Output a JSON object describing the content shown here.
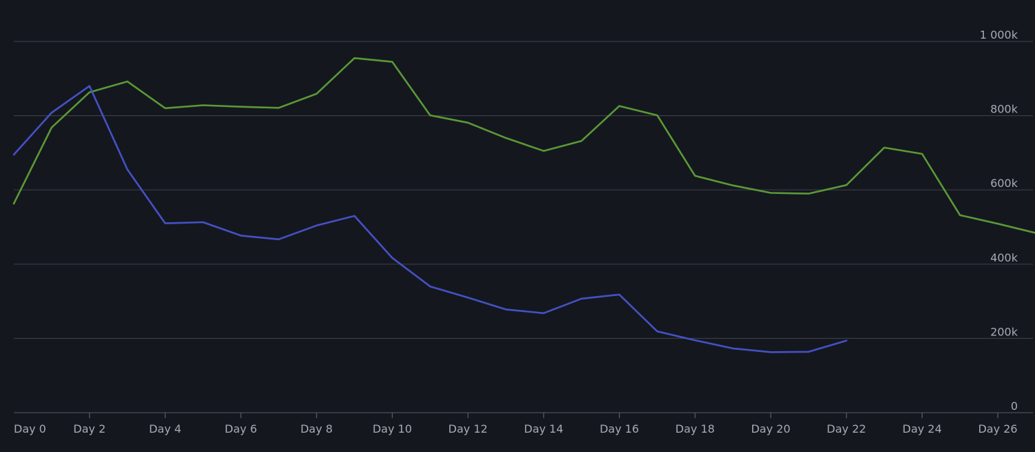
{
  "chart_data": {
    "type": "line",
    "title": "",
    "xlabel": "",
    "ylabel": "",
    "x": [
      0,
      1,
      2,
      3,
      4,
      5,
      6,
      7,
      8,
      9,
      10,
      11,
      12,
      13,
      14,
      15,
      16,
      17,
      18,
      19,
      20,
      21,
      22,
      23,
      24,
      25,
      26,
      27
    ],
    "xlim": [
      0,
      27
    ],
    "ylim": [
      0,
      1000000
    ],
    "y_ticks": [
      {
        "value": 0,
        "label": "0"
      },
      {
        "value": 200000,
        "label": "200k"
      },
      {
        "value": 400000,
        "label": "400k"
      },
      {
        "value": 600000,
        "label": "600k"
      },
      {
        "value": 800000,
        "label": "800k"
      },
      {
        "value": 1000000,
        "label": "1 000k"
      }
    ],
    "x_ticks": [
      {
        "value": 0,
        "label": "Day 0"
      },
      {
        "value": 2,
        "label": "Day 2"
      },
      {
        "value": 4,
        "label": "Day 4"
      },
      {
        "value": 6,
        "label": "Day 6"
      },
      {
        "value": 8,
        "label": "Day 8"
      },
      {
        "value": 10,
        "label": "Day 10"
      },
      {
        "value": 12,
        "label": "Day 12"
      },
      {
        "value": 14,
        "label": "Day 14"
      },
      {
        "value": 16,
        "label": "Day 16"
      },
      {
        "value": 18,
        "label": "Day 18"
      },
      {
        "value": 20,
        "label": "Day 20"
      },
      {
        "value": 22,
        "label": "Day 22"
      },
      {
        "value": 24,
        "label": "Day 24"
      },
      {
        "value": 26,
        "label": "Day 26"
      }
    ],
    "grid": true,
    "series": [
      {
        "name": "green-series",
        "color": "#5a9a35",
        "values": [
          563000,
          768000,
          863000,
          892000,
          820000,
          828000,
          824000,
          821000,
          859000,
          955000,
          945000,
          801000,
          781000,
          740000,
          705000,
          732000,
          826000,
          801000,
          638000,
          612000,
          592000,
          590000,
          613000,
          714000,
          697000,
          532000,
          509000,
          484000
        ]
      },
      {
        "name": "blue-series",
        "color": "#4452c4",
        "values": [
          695000,
          808000,
          880000,
          655000,
          510000,
          513000,
          477000,
          467000,
          504000,
          530000,
          417000,
          340000,
          310000,
          278000,
          268000,
          307000,
          318000,
          219000,
          195000,
          173000,
          163000,
          164000,
          194000,
          null,
          null,
          null,
          null,
          null
        ]
      }
    ]
  }
}
